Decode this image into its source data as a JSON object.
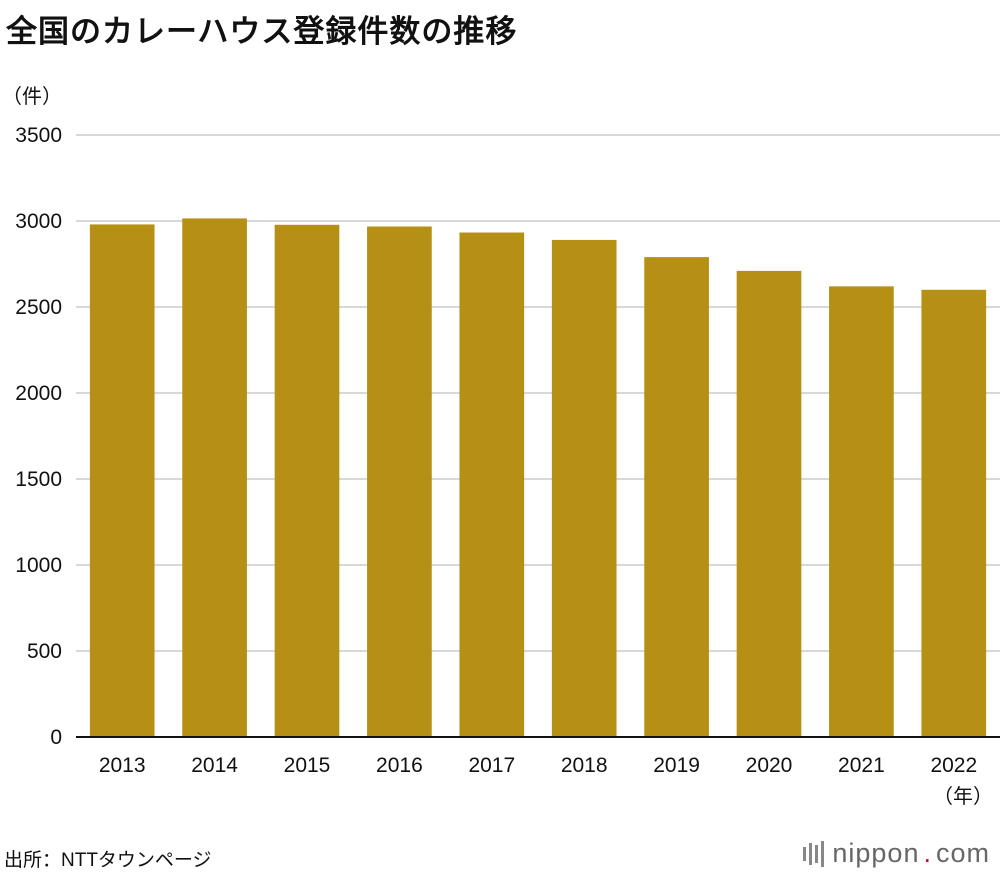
{
  "title": "全国のカレーハウス登録件数の推移",
  "source": "出所：NTTタウンページ",
  "logo": {
    "name": "nippon",
    "dot": ".",
    "suffix": "com"
  },
  "colors": {
    "bar": "#b68f15",
    "grid": "#cccccc",
    "axis": "#111111"
  },
  "chart_data": {
    "type": "bar",
    "title": "全国のカレーハウス登録件数の推移",
    "ylabel": "（件）",
    "xlabel": "（年）",
    "categories": [
      "2013",
      "2014",
      "2015",
      "2016",
      "2017",
      "2018",
      "2019",
      "2020",
      "2021",
      "2022"
    ],
    "values": [
      2980,
      3015,
      2978,
      2968,
      2933,
      2890,
      2790,
      2710,
      2620,
      2600
    ],
    "ylim": [
      0,
      3500
    ],
    "yticks": [
      "0",
      "500",
      "1000",
      "1500",
      "2000",
      "2500",
      "3000",
      "3500"
    ],
    "grid": true
  }
}
